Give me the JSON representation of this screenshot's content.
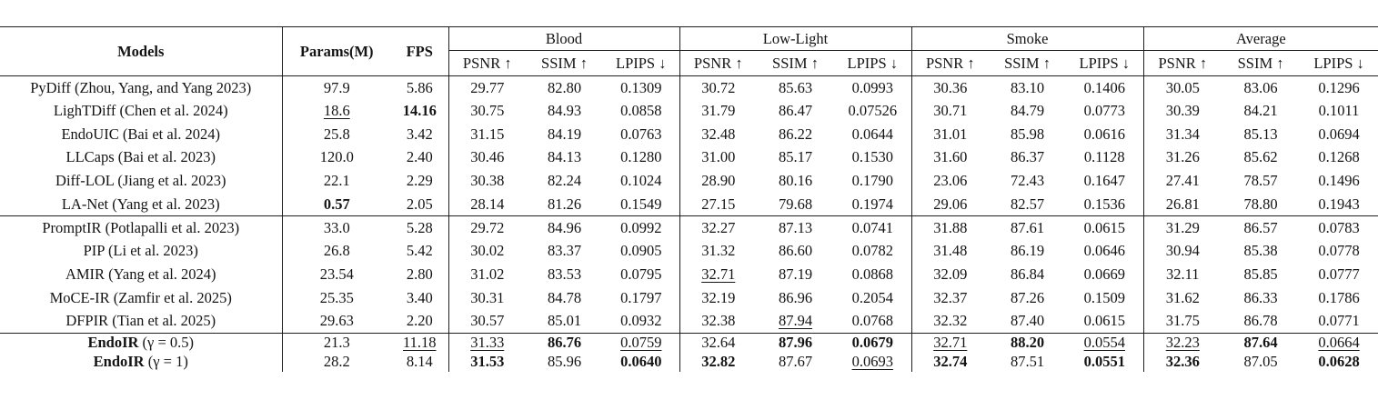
{
  "header": {
    "models": "Models",
    "params": "Params(M)",
    "fps": "FPS",
    "groups": [
      "Blood",
      "Low-Light",
      "Smoke",
      "Average"
    ],
    "metrics": [
      "PSNR ↑",
      "SSIM ↑",
      "LPIPS ↓"
    ]
  },
  "chart_data": {
    "type": "table",
    "title": "Restoration benchmark: Params, FPS and PSNR/SSIM/LPIPS on Blood, Low-Light, Smoke and Average"
  },
  "table": {
    "rows": [
      {
        "model": "PyDiff (Zhou, Yang, and Yang 2023)",
        "values": [
          "97.9",
          "5.86",
          "29.77",
          "82.80",
          "0.1309",
          "30.72",
          "85.63",
          "0.0993",
          "30.36",
          "83.10",
          "0.1406",
          "30.05",
          "83.06",
          "0.1296"
        ]
      },
      {
        "model": "LighTDiff (Chen et al. 2024)",
        "values": [
          "18.6",
          "14.16",
          "30.75",
          "84.93",
          "0.0858",
          "31.79",
          "86.47",
          "0.07526",
          "30.71",
          "84.79",
          "0.0773",
          "30.39",
          "84.21",
          "0.1011"
        ],
        "fmt": {
          "0": "u",
          "1": "b"
        }
      },
      {
        "model": "EndoUIC (Bai et al. 2024)",
        "values": [
          "25.8",
          "3.42",
          "31.15",
          "84.19",
          "0.0763",
          "32.48",
          "86.22",
          "0.0644",
          "31.01",
          "85.98",
          "0.0616",
          "31.34",
          "85.13",
          "0.0694"
        ]
      },
      {
        "model": "LLCaps (Bai et al. 2023)",
        "values": [
          "120.0",
          "2.40",
          "30.46",
          "84.13",
          "0.1280",
          "31.00",
          "85.17",
          "0.1530",
          "31.60",
          "86.37",
          "0.1128",
          "31.26",
          "85.62",
          "0.1268"
        ]
      },
      {
        "model": "Diff-LOL (Jiang et al. 2023)",
        "values": [
          "22.1",
          "2.29",
          "30.38",
          "82.24",
          "0.1024",
          "28.90",
          "80.16",
          "0.1790",
          "23.06",
          "72.43",
          "0.1647",
          "27.41",
          "78.57",
          "0.1496"
        ]
      },
      {
        "model": "LA-Net (Yang et al. 2023)",
        "values": [
          "0.57",
          "2.05",
          "28.14",
          "81.26",
          "0.1549",
          "27.15",
          "79.68",
          "0.1974",
          "29.06",
          "82.57",
          "0.1536",
          "26.81",
          "78.80",
          "0.1943"
        ],
        "fmt": {
          "0": "b"
        }
      },
      {
        "model": "PromptIR (Potlapalli et al. 2023)",
        "sep": true,
        "values": [
          "33.0",
          "5.28",
          "29.72",
          "84.96",
          "0.0992",
          "32.27",
          "87.13",
          "0.0741",
          "31.88",
          "87.61",
          "0.0615",
          "31.29",
          "86.57",
          "0.0783"
        ]
      },
      {
        "model": "PIP (Li et al. 2023)",
        "values": [
          "26.8",
          "5.42",
          "30.02",
          "83.37",
          "0.0905",
          "31.32",
          "86.60",
          "0.0782",
          "31.48",
          "86.19",
          "0.0646",
          "30.94",
          "85.38",
          "0.0778"
        ]
      },
      {
        "model": "AMIR (Yang et al. 2024)",
        "values": [
          "23.54",
          "2.80",
          "31.02",
          "83.53",
          "0.0795",
          "32.71",
          "87.19",
          "0.0868",
          "32.09",
          "86.84",
          "0.0669",
          "32.11",
          "85.85",
          "0.0777"
        ],
        "fmt": {
          "5": "u"
        }
      },
      {
        "model": "MoCE-IR (Zamfir et al. 2025)",
        "values": [
          "25.35",
          "3.40",
          "30.31",
          "84.78",
          "0.1797",
          "32.19",
          "86.96",
          "0.2054",
          "32.37",
          "87.26",
          "0.1509",
          "31.62",
          "86.33",
          "0.1786"
        ]
      },
      {
        "model": "DFPIR (Tian et al. 2025)",
        "values": [
          "29.63",
          "2.20",
          "30.57",
          "85.01",
          "0.0932",
          "32.38",
          "87.94",
          "0.0768",
          "32.32",
          "87.40",
          "0.0615",
          "31.75",
          "86.78",
          "0.0771"
        ],
        "fmt": {
          "6": "u"
        }
      },
      {
        "model_bold": "EndoIR",
        "model_rest": " (γ = 0.5)",
        "sep": true,
        "tight": true,
        "values": [
          "21.3",
          "11.18",
          "31.33",
          "86.76",
          "0.0759",
          "32.64",
          "87.96",
          "0.0679",
          "32.71",
          "88.20",
          "0.0554",
          "32.23",
          "87.64",
          "0.0664"
        ],
        "fmt": {
          "1": "u",
          "2": "u",
          "3": "b",
          "4": "u",
          "6": "b",
          "7": "b",
          "8": "u",
          "9": "b",
          "10": "u",
          "11": "u",
          "12": "b",
          "13": "u"
        }
      },
      {
        "model_bold": "EndoIR",
        "model_rest": " (γ = 1)",
        "tight": true,
        "values": [
          "28.2",
          "8.14",
          "31.53",
          "85.96",
          "0.0640",
          "32.82",
          "87.67",
          "0.0693",
          "32.74",
          "87.51",
          "0.0551",
          "32.36",
          "87.05",
          "0.0628"
        ],
        "fmt": {
          "2": "b",
          "4": "b",
          "5": "b",
          "7": "u",
          "8": "b",
          "10": "b",
          "11": "b",
          "13": "b"
        }
      }
    ]
  }
}
